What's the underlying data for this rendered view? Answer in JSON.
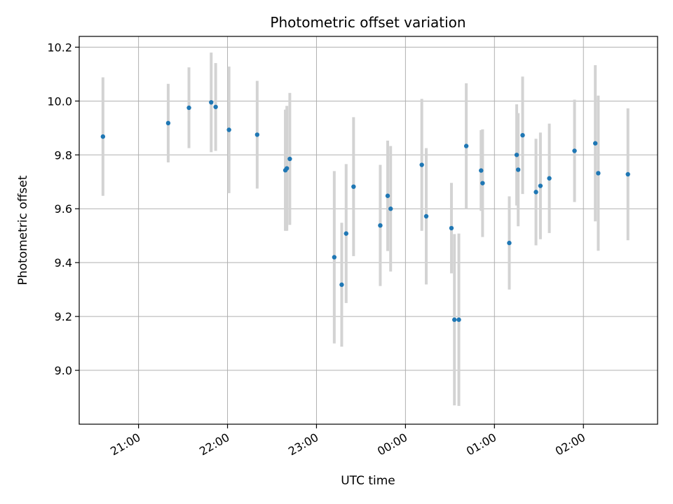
{
  "chart_data": {
    "type": "scatter",
    "title": "Photometric offset variation",
    "xlabel": "UTC time",
    "ylabel": "Photometric offset",
    "x_tick_labels": [
      "21:00",
      "22:00",
      "23:00",
      "00:00",
      "01:00",
      "02:00"
    ],
    "y_tick_labels": [
      "9.0",
      "9.2",
      "9.4",
      "9.6",
      "9.8",
      "10.0",
      "10.2"
    ],
    "y_ticks": [
      9.0,
      9.2,
      9.4,
      9.6,
      9.8,
      10.0,
      10.2
    ],
    "xlim": [
      "20:20",
      "02:50"
    ],
    "ylim": [
      8.8,
      10.24
    ],
    "grid": true,
    "marker_color": "#1f77b4",
    "errorbar_color": "#d3d3d3",
    "points": [
      {
        "x": "20:36",
        "y": 9.868,
        "err": 0.22
      },
      {
        "x": "21:20",
        "y": 9.918,
        "err": 0.146
      },
      {
        "x": "21:34",
        "y": 9.975,
        "err": 0.15
      },
      {
        "x": "21:49",
        "y": 9.995,
        "err": 0.185
      },
      {
        "x": "21:52",
        "y": 9.978,
        "err": 0.163
      },
      {
        "x": "22:01",
        "y": 9.893,
        "err": 0.235
      },
      {
        "x": "22:20",
        "y": 9.875,
        "err": 0.2
      },
      {
        "x": "22:39",
        "y": 9.743,
        "err": 0.225
      },
      {
        "x": "22:40",
        "y": 9.75,
        "err": 0.232
      },
      {
        "x": "22:42",
        "y": 9.785,
        "err": 0.245
      },
      {
        "x": "23:12",
        "y": 9.42,
        "err": 0.32
      },
      {
        "x": "23:17",
        "y": 9.318,
        "err": 0.23
      },
      {
        "x": "23:20",
        "y": 9.508,
        "err": 0.258
      },
      {
        "x": "23:25",
        "y": 9.682,
        "err": 0.258
      },
      {
        "x": "23:43",
        "y": 9.538,
        "err": 0.225
      },
      {
        "x": "23:48",
        "y": 9.648,
        "err": 0.205
      },
      {
        "x": "23:50",
        "y": 9.6,
        "err": 0.233
      },
      {
        "x": "00:11",
        "y": 9.763,
        "err": 0.245
      },
      {
        "x": "00:14",
        "y": 9.572,
        "err": 0.253
      },
      {
        "x": "00:31",
        "y": 9.528,
        "err": 0.168
      },
      {
        "x": "00:33",
        "y": 9.188,
        "err": 0.318
      },
      {
        "x": "00:36",
        "y": 9.188,
        "err": 0.32
      },
      {
        "x": "00:41",
        "y": 9.833,
        "err": 0.233
      },
      {
        "x": "00:51",
        "y": 9.742,
        "err": 0.15
      },
      {
        "x": "00:52",
        "y": 9.695,
        "err": 0.2
      },
      {
        "x": "01:10",
        "y": 9.473,
        "err": 0.173
      },
      {
        "x": "01:15",
        "y": 9.8,
        "err": 0.188
      },
      {
        "x": "01:16",
        "y": 9.745,
        "err": 0.21
      },
      {
        "x": "01:19",
        "y": 9.873,
        "err": 0.218
      },
      {
        "x": "01:28",
        "y": 9.662,
        "err": 0.198
      },
      {
        "x": "01:31",
        "y": 9.685,
        "err": 0.198
      },
      {
        "x": "01:37",
        "y": 9.713,
        "err": 0.203
      },
      {
        "x": "01:54",
        "y": 9.815,
        "err": 0.19
      },
      {
        "x": "02:08",
        "y": 9.843,
        "err": 0.29
      },
      {
        "x": "02:10",
        "y": 9.732,
        "err": 0.288
      },
      {
        "x": "02:30",
        "y": 9.728,
        "err": 0.245
      }
    ]
  }
}
